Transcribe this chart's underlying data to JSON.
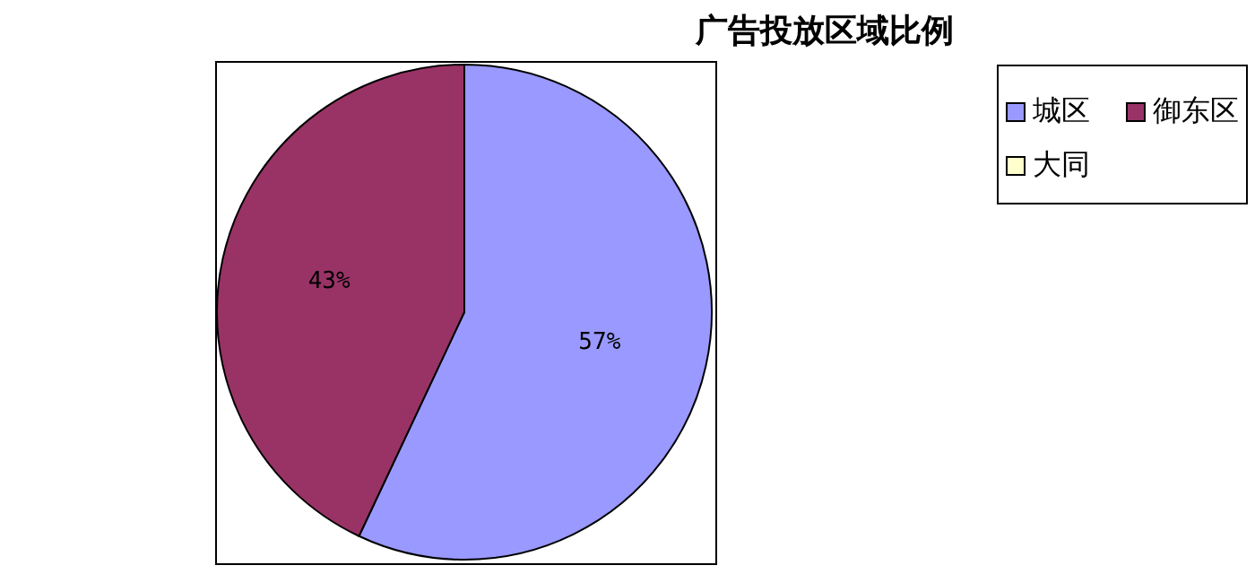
{
  "chart_data": {
    "type": "pie",
    "title": "广告投放区域比例",
    "categories": [
      "城区",
      "御东区",
      "大同"
    ],
    "values": [
      57,
      43,
      0
    ],
    "colors": [
      "#9999ff",
      "#993366",
      "#ffffcc"
    ],
    "value_labels": [
      "57%",
      "43%",
      null
    ],
    "legend": "top right"
  }
}
